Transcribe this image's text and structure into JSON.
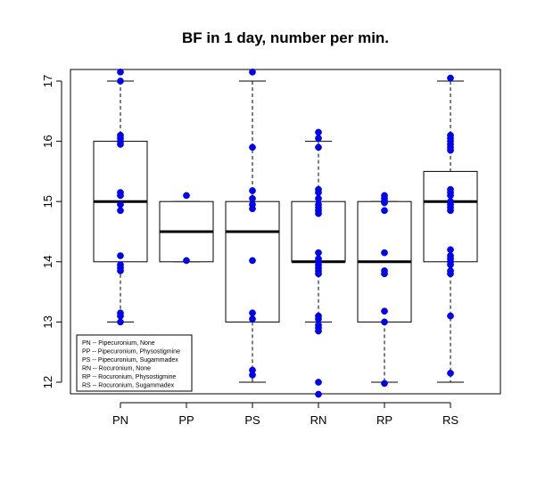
{
  "chart_data": {
    "type": "boxplot",
    "title": "BF in 1 day, number per min.",
    "xlabel": "",
    "ylabel": "",
    "ylim": [
      11.8,
      17.2
    ],
    "yticks": [
      12,
      13,
      14,
      15,
      16,
      17
    ],
    "categories": [
      "PN",
      "PP",
      "PS",
      "RN",
      "RP",
      "RS"
    ],
    "boxes": [
      {
        "label": "PN",
        "whisker_low": 13,
        "q1": 14,
        "median": 15,
        "q3": 16,
        "whisker_high": 17
      },
      {
        "label": "PP",
        "whisker_low": 14,
        "q1": 14,
        "median": 14.5,
        "q3": 15,
        "whisker_high": 15
      },
      {
        "label": "PS",
        "whisker_low": 12,
        "q1": 13,
        "median": 14.5,
        "q3": 15,
        "whisker_high": 17
      },
      {
        "label": "RN",
        "whisker_low": 13,
        "q1": 14,
        "median": 14,
        "q3": 15,
        "whisker_high": 16
      },
      {
        "label": "RP",
        "whisker_low": 12,
        "q1": 13,
        "median": 14,
        "q3": 15,
        "whisker_high": 15
      },
      {
        "label": "RS",
        "whisker_low": 12,
        "q1": 14,
        "median": 15,
        "q3": 15.5,
        "whisker_high": 17
      }
    ],
    "points": [
      {
        "group": "PN",
        "values": [
          17.15,
          17.0,
          16.1,
          16.05,
          16.0,
          15.95,
          15.15,
          15.1,
          14.95,
          14.85,
          14.1,
          13.95,
          13.9,
          13.85,
          13.15,
          13.1,
          13.0
        ]
      },
      {
        "group": "PP",
        "values": [
          15.1,
          14.02
        ]
      },
      {
        "group": "PS",
        "values": [
          17.15,
          15.9,
          15.18,
          15.05,
          14.95,
          14.88,
          14.02,
          13.15,
          13.05,
          12.2,
          12.12
        ]
      },
      {
        "group": "RN",
        "values": [
          16.15,
          16.05,
          15.9,
          15.2,
          15.15,
          15.05,
          14.95,
          14.9,
          14.85,
          14.8,
          14.15,
          14.05,
          14.0,
          13.95,
          13.9,
          13.85,
          13.8,
          13.1,
          13.05,
          12.95,
          12.9,
          12.85,
          12.0,
          11.8
        ]
      },
      {
        "group": "RP",
        "values": [
          15.1,
          15.05,
          15.0,
          14.98,
          14.85,
          14.15,
          13.85,
          13.8,
          13.18,
          13.0,
          11.98
        ]
      },
      {
        "group": "RS",
        "values": [
          17.05,
          16.1,
          16.05,
          16.0,
          15.95,
          15.9,
          15.85,
          15.2,
          15.15,
          15.1,
          15.0,
          14.95,
          14.9,
          14.85,
          14.2,
          14.1,
          14.05,
          14.0,
          13.95,
          13.85,
          13.8,
          13.1,
          12.15
        ]
      }
    ],
    "point_color": "#0000ff",
    "legend": {
      "position": "bottom-left",
      "entries": [
        "PN -- Pipecuronium, None",
        "PP -- Pipecuronium, Physostigmine",
        "PS -- Pipecuronium, Sugammadex",
        "RN -- Rocuronium, None",
        "RP -- Rocuronium, Physostigmine",
        "RS -- Rocuronium, Sugammadex"
      ]
    }
  }
}
